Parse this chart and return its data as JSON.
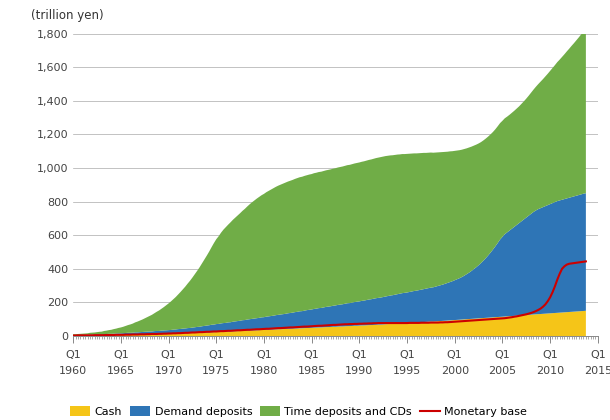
{
  "title": "(trillion yen)",
  "ylim": [
    0,
    1800
  ],
  "yticks": [
    0,
    200,
    400,
    600,
    800,
    1000,
    1200,
    1400,
    1600,
    1800
  ],
  "x_tick_years": [
    1960,
    1965,
    1970,
    1975,
    1980,
    1985,
    1990,
    1995,
    2000,
    2005,
    2010,
    2015
  ],
  "colors": {
    "cash": "#F5C518",
    "demand_deposits": "#2E75B6",
    "time_deposits": "#70AD47",
    "monetary_base": "#CC0000"
  },
  "grid_color": "#AAAAAA",
  "cash": [
    4,
    4,
    4,
    4,
    4,
    4,
    4,
    5,
    5,
    5,
    5,
    5,
    5,
    6,
    6,
    6,
    6,
    6,
    7,
    7,
    7,
    7,
    8,
    8,
    8,
    8,
    9,
    9,
    9,
    9,
    10,
    10,
    10,
    10,
    11,
    11,
    11,
    12,
    12,
    12,
    13,
    13,
    14,
    14,
    15,
    15,
    16,
    16,
    17,
    17,
    18,
    18,
    19,
    19,
    20,
    21,
    21,
    22,
    23,
    23,
    24,
    24,
    25,
    26,
    26,
    27,
    27,
    28,
    29,
    29,
    30,
    31,
    31,
    32,
    33,
    33,
    34,
    34,
    35,
    36,
    36,
    37,
    38,
    38,
    39,
    40,
    40,
    41,
    41,
    42,
    43,
    43,
    44,
    45,
    45,
    46,
    46,
    47,
    48,
    48,
    49,
    50,
    50,
    51,
    51,
    52,
    53,
    53,
    54,
    55,
    55,
    56,
    57,
    57,
    58,
    59,
    59,
    60,
    61,
    61,
    62,
    63,
    63,
    64,
    65,
    65,
    66,
    67,
    68,
    68,
    69,
    70,
    71,
    72,
    72,
    73,
    74,
    75,
    76,
    76,
    77,
    78,
    79,
    80,
    80,
    81,
    82,
    83,
    84,
    85,
    86,
    86,
    87,
    88,
    89,
    90,
    91,
    92,
    93,
    94,
    95,
    96,
    97,
    98,
    99,
    100,
    101,
    102,
    103,
    104,
    105,
    106,
    107,
    108,
    109,
    110,
    111,
    112,
    113,
    114,
    115,
    116,
    117,
    118,
    119,
    120,
    121,
    122,
    123,
    124,
    125,
    126,
    127,
    128,
    129,
    130,
    131,
    132,
    133,
    134,
    135,
    136,
    137,
    138,
    139,
    140,
    141,
    142,
    143,
    144,
    145,
    146,
    147,
    148,
    149,
    150,
    151,
    152,
    153,
    154,
    155,
    156,
    157,
    158,
    159,
    160,
    161,
    162,
    163,
    164,
    165,
    166
  ],
  "demand_deposits": [
    2,
    2,
    2,
    3,
    3,
    3,
    3,
    4,
    4,
    4,
    5,
    5,
    5,
    6,
    6,
    7,
    7,
    8,
    8,
    9,
    9,
    10,
    10,
    11,
    11,
    12,
    13,
    13,
    14,
    15,
    15,
    16,
    17,
    17,
    18,
    19,
    19,
    20,
    21,
    22,
    22,
    23,
    24,
    25,
    26,
    27,
    28,
    29,
    30,
    31,
    32,
    34,
    35,
    36,
    38,
    39,
    41,
    42,
    44,
    45,
    47,
    48,
    50,
    51,
    52,
    54,
    55,
    57,
    58,
    60,
    61,
    63,
    64,
    66,
    67,
    69,
    70,
    72,
    73,
    75,
    76,
    78,
    79,
    81,
    82,
    84,
    86,
    87,
    89,
    90,
    92,
    94,
    95,
    97,
    99,
    101,
    102,
    104,
    106,
    108,
    109,
    111,
    113,
    115,
    116,
    118,
    120,
    122,
    123,
    125,
    127,
    129,
    130,
    132,
    134,
    136,
    137,
    139,
    141,
    143,
    144,
    146,
    148,
    150,
    152,
    154,
    156,
    158,
    159,
    161,
    163,
    165,
    167,
    169,
    171,
    173,
    175,
    177,
    179,
    181,
    182,
    184,
    186,
    188,
    190,
    192,
    194,
    196,
    198,
    200,
    202,
    204,
    207,
    210,
    213,
    216,
    220,
    224,
    228,
    232,
    237,
    242,
    247,
    253,
    260,
    268,
    276,
    285,
    295,
    305,
    316,
    328,
    341,
    355,
    370,
    386,
    403,
    421,
    440,
    460,
    475,
    490,
    500,
    510,
    520,
    530,
    540,
    550,
    560,
    570,
    580,
    590,
    600,
    610,
    618,
    625,
    630,
    635,
    640,
    645,
    650,
    655,
    660,
    665,
    668,
    671,
    674,
    677,
    680,
    683,
    686,
    689,
    692,
    695,
    698,
    700
  ],
  "time_deposits": [
    5,
    5,
    6,
    6,
    7,
    8,
    9,
    10,
    11,
    12,
    13,
    15,
    16,
    18,
    20,
    22,
    24,
    27,
    29,
    32,
    35,
    38,
    42,
    46,
    50,
    54,
    59,
    64,
    69,
    74,
    80,
    86,
    92,
    99,
    106,
    114,
    122,
    130,
    139,
    149,
    159,
    170,
    181,
    193,
    206,
    220,
    234,
    249,
    265,
    281,
    298,
    316,
    334,
    354,
    374,
    395,
    416,
    438,
    461,
    485,
    505,
    522,
    540,
    556,
    570,
    582,
    595,
    607,
    618,
    629,
    640,
    651,
    662,
    673,
    684,
    694,
    703,
    712,
    720,
    727,
    734,
    741,
    747,
    753,
    759,
    764,
    769,
    773,
    777,
    781,
    784,
    787,
    790,
    793,
    796,
    798,
    800,
    802,
    803,
    805,
    806,
    808,
    809,
    810,
    811,
    812,
    813,
    814,
    815,
    816,
    817,
    818,
    819,
    820,
    821,
    822,
    823,
    824,
    825,
    826,
    827,
    828,
    829,
    830,
    831,
    832,
    833,
    834,
    835,
    836,
    836,
    836,
    835,
    834,
    833,
    832,
    831,
    829,
    828,
    826,
    825,
    823,
    821,
    819,
    817,
    815,
    813,
    811,
    808,
    806,
    804,
    801,
    798,
    795,
    792,
    789,
    785,
    781,
    778,
    774,
    770,
    766,
    762,
    758,
    754,
    749,
    745,
    740,
    735,
    730,
    725,
    720,
    716,
    712,
    708,
    704,
    700,
    697,
    695,
    693,
    691,
    690,
    689,
    689,
    690,
    691,
    693,
    695,
    699,
    703,
    708,
    714,
    721,
    728,
    736,
    744,
    753,
    762,
    772,
    782,
    793,
    804,
    815,
    827,
    838,
    850,
    862,
    875,
    887,
    900,
    912,
    925,
    938,
    952,
    965,
    978,
    992,
    1005,
    1019,
    1032
  ],
  "monetary_base": [
    3,
    3,
    4,
    4,
    4,
    4,
    4,
    4,
    4,
    5,
    5,
    5,
    5,
    5,
    6,
    6,
    6,
    6,
    7,
    7,
    7,
    7,
    8,
    8,
    8,
    9,
    9,
    9,
    10,
    10,
    10,
    11,
    11,
    12,
    12,
    12,
    13,
    13,
    14,
    14,
    15,
    15,
    16,
    16,
    17,
    17,
    18,
    19,
    19,
    20,
    21,
    21,
    22,
    23,
    23,
    24,
    25,
    25,
    26,
    27,
    27,
    28,
    29,
    29,
    30,
    31,
    31,
    32,
    33,
    34,
    34,
    35,
    36,
    37,
    37,
    38,
    39,
    40,
    40,
    41,
    42,
    43,
    43,
    44,
    45,
    46,
    47,
    47,
    48,
    49,
    50,
    51,
    51,
    52,
    53,
    54,
    55,
    56,
    56,
    57,
    58,
    59,
    60,
    61,
    61,
    62,
    63,
    64,
    65,
    66,
    66,
    67,
    68,
    69,
    70,
    70,
    71,
    71,
    72,
    72,
    73,
    73,
    74,
    74,
    75,
    75,
    76,
    76,
    77,
    77,
    77,
    77,
    77,
    77,
    77,
    77,
    77,
    77,
    77,
    77,
    77,
    78,
    78,
    78,
    78,
    78,
    79,
    79,
    79,
    79,
    80,
    80,
    80,
    80,
    81,
    81,
    82,
    82,
    83,
    84,
    85,
    86,
    87,
    88,
    89,
    90,
    91,
    92,
    93,
    94,
    95,
    96,
    97,
    98,
    99,
    100,
    101,
    102,
    103,
    104,
    105,
    106,
    108,
    110,
    112,
    115,
    117,
    120,
    123,
    126,
    129,
    133,
    137,
    142,
    148,
    155,
    163,
    174,
    188,
    207,
    230,
    260,
    295,
    335,
    370,
    400,
    415,
    425,
    430,
    432,
    434,
    436,
    438,
    440,
    442,
    444,
    446,
    448,
    450,
    452
  ]
}
